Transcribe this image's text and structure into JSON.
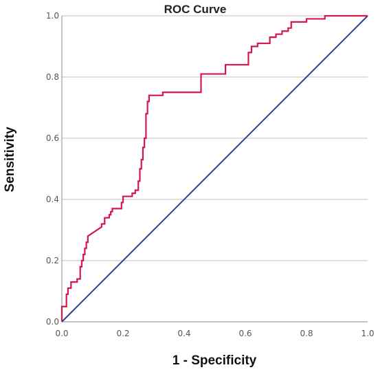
{
  "chart_data": {
    "type": "line",
    "title": "ROC Curve",
    "xlabel": "1 - Specificity",
    "ylabel": "Sensitivity",
    "xlim": [
      0,
      1
    ],
    "ylim": [
      0,
      1
    ],
    "x_ticks": [
      "0.0",
      "0.2",
      "0.4",
      "0.6",
      "0.8",
      "1.0"
    ],
    "y_ticks": [
      "0.0",
      "0.2",
      "0.4",
      "0.6",
      "0.8",
      "1.0"
    ],
    "grid": "horizontal",
    "legend": "none",
    "series": [
      {
        "role": "roc",
        "color": "#d4174a",
        "points": [
          [
            0.0,
            0.0
          ],
          [
            0.0,
            0.05
          ],
          [
            0.015,
            0.05
          ],
          [
            0.015,
            0.09
          ],
          [
            0.02,
            0.09
          ],
          [
            0.02,
            0.11
          ],
          [
            0.03,
            0.11
          ],
          [
            0.03,
            0.13
          ],
          [
            0.05,
            0.13
          ],
          [
            0.05,
            0.14
          ],
          [
            0.06,
            0.14
          ],
          [
            0.06,
            0.18
          ],
          [
            0.065,
            0.18
          ],
          [
            0.065,
            0.2
          ],
          [
            0.07,
            0.2
          ],
          [
            0.07,
            0.22
          ],
          [
            0.075,
            0.22
          ],
          [
            0.075,
            0.24
          ],
          [
            0.08,
            0.24
          ],
          [
            0.08,
            0.26
          ],
          [
            0.085,
            0.26
          ],
          [
            0.085,
            0.28
          ],
          [
            0.1,
            0.29
          ],
          [
            0.13,
            0.31
          ],
          [
            0.13,
            0.32
          ],
          [
            0.14,
            0.32
          ],
          [
            0.14,
            0.34
          ],
          [
            0.155,
            0.34
          ],
          [
            0.155,
            0.35
          ],
          [
            0.16,
            0.35
          ],
          [
            0.16,
            0.36
          ],
          [
            0.165,
            0.36
          ],
          [
            0.165,
            0.37
          ],
          [
            0.195,
            0.37
          ],
          [
            0.195,
            0.39
          ],
          [
            0.2,
            0.39
          ],
          [
            0.2,
            0.41
          ],
          [
            0.23,
            0.41
          ],
          [
            0.23,
            0.42
          ],
          [
            0.24,
            0.42
          ],
          [
            0.24,
            0.43
          ],
          [
            0.25,
            0.43
          ],
          [
            0.25,
            0.46
          ],
          [
            0.255,
            0.46
          ],
          [
            0.255,
            0.5
          ],
          [
            0.26,
            0.5
          ],
          [
            0.26,
            0.53
          ],
          [
            0.265,
            0.53
          ],
          [
            0.265,
            0.57
          ],
          [
            0.27,
            0.57
          ],
          [
            0.27,
            0.6
          ],
          [
            0.275,
            0.6
          ],
          [
            0.275,
            0.68
          ],
          [
            0.28,
            0.68
          ],
          [
            0.28,
            0.72
          ],
          [
            0.285,
            0.72
          ],
          [
            0.285,
            0.74
          ],
          [
            0.33,
            0.74
          ],
          [
            0.33,
            0.75
          ],
          [
            0.455,
            0.75
          ],
          [
            0.455,
            0.81
          ],
          [
            0.535,
            0.81
          ],
          [
            0.535,
            0.84
          ],
          [
            0.61,
            0.84
          ],
          [
            0.61,
            0.88
          ],
          [
            0.62,
            0.88
          ],
          [
            0.62,
            0.9
          ],
          [
            0.64,
            0.9
          ],
          [
            0.64,
            0.91
          ],
          [
            0.68,
            0.91
          ],
          [
            0.68,
            0.93
          ],
          [
            0.7,
            0.93
          ],
          [
            0.7,
            0.94
          ],
          [
            0.72,
            0.94
          ],
          [
            0.72,
            0.95
          ],
          [
            0.74,
            0.95
          ],
          [
            0.74,
            0.96
          ],
          [
            0.75,
            0.96
          ],
          [
            0.75,
            0.98
          ],
          [
            0.8,
            0.98
          ],
          [
            0.8,
            0.99
          ],
          [
            0.86,
            0.99
          ],
          [
            0.86,
            1.0
          ],
          [
            1.0,
            1.0
          ]
        ]
      },
      {
        "role": "reference",
        "color": "#2b3f8c",
        "points": [
          [
            0,
            0
          ],
          [
            1,
            1
          ]
        ]
      }
    ]
  }
}
